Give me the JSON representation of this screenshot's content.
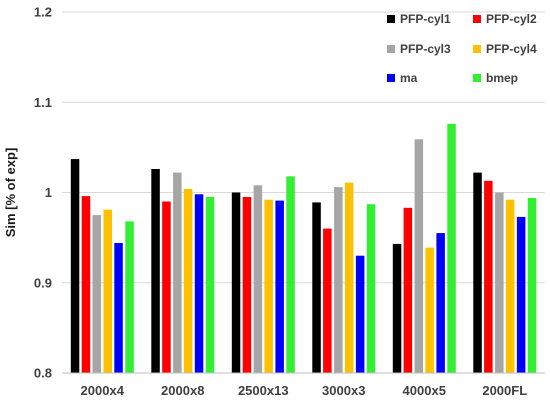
{
  "chart_data": {
    "type": "bar",
    "title": "",
    "xlabel": "",
    "ylabel": "Sim [% of exp]",
    "ylim": [
      0.8,
      1.2
    ],
    "yticks": [
      "0.8",
      "0.9",
      "1",
      "1.1",
      "1.2"
    ],
    "grid": "horizontal",
    "legend_position": "top-right",
    "categories": [
      "2000x4",
      "2000x8",
      "2500x13",
      "3000x3",
      "4000x5",
      "2000FL"
    ],
    "series": [
      {
        "name": "PFP-cyl1",
        "color": "#000000",
        "values": [
          1.037,
          1.026,
          1.0,
          0.989,
          0.943,
          1.022
        ]
      },
      {
        "name": "PFP-cyl2",
        "color": "#ff0000",
        "values": [
          0.996,
          0.99,
          0.995,
          0.96,
          0.983,
          1.013
        ]
      },
      {
        "name": "PFP-cyl3",
        "color": "#a6a6a6",
        "values": [
          0.975,
          1.022,
          1.008,
          1.006,
          1.059,
          1.0
        ]
      },
      {
        "name": "PFP-cyl4",
        "color": "#ffc000",
        "values": [
          0.981,
          1.004,
          0.992,
          1.011,
          0.939,
          0.992
        ]
      },
      {
        "name": "ma",
        "color": "#0000ff",
        "values": [
          0.944,
          0.998,
          0.991,
          0.93,
          0.955,
          0.973
        ]
      },
      {
        "name": "bmep",
        "color": "#33ee33",
        "values": [
          0.968,
          0.995,
          1.018,
          0.987,
          1.076,
          0.994
        ]
      }
    ]
  }
}
